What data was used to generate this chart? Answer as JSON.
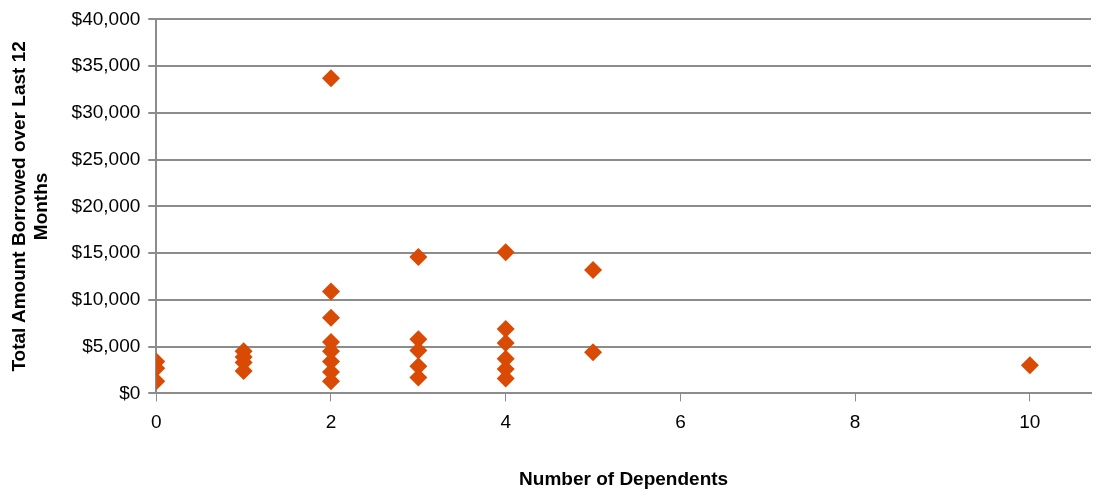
{
  "chart_data": {
    "type": "scatter",
    "xlabel": "Number of Dependents",
    "ylabel": "Total Amount Borrowed over Last 12 Months",
    "xlim": [
      0,
      10.7
    ],
    "xticks": [
      0,
      2,
      4,
      6,
      8,
      10
    ],
    "ylim": [
      0,
      40000
    ],
    "yticks": [
      {
        "value": 0,
        "label": "$0"
      },
      {
        "value": 5000,
        "label": "$5,000"
      },
      {
        "value": 10000,
        "label": "$10,000"
      },
      {
        "value": 15000,
        "label": "$15,000"
      },
      {
        "value": 20000,
        "label": "$20,000"
      },
      {
        "value": 25000,
        "label": "$25,000"
      },
      {
        "value": 30000,
        "label": "$30,000"
      },
      {
        "value": 35000,
        "label": "$35,000"
      },
      {
        "value": 40000,
        "label": "$40,000"
      }
    ],
    "grid": "y",
    "marker": "diamond",
    "legend": false,
    "series": [
      {
        "color": "#d94a04",
        "x": [
          0,
          0,
          0,
          1,
          1,
          1,
          1,
          2,
          2,
          2,
          2,
          2,
          2,
          2,
          2,
          3,
          3,
          3,
          3,
          3,
          4,
          4,
          4,
          4,
          4,
          4,
          5,
          5,
          10
        ],
        "values": [
          3400,
          2700,
          1300,
          4500,
          3900,
          3300,
          2400,
          33700,
          10900,
          8100,
          5500,
          4500,
          3400,
          2300,
          1300,
          14600,
          5800,
          4600,
          2900,
          1700,
          15100,
          6900,
          5400,
          3700,
          2600,
          1600,
          13200,
          4400,
          3000
        ]
      }
    ]
  }
}
